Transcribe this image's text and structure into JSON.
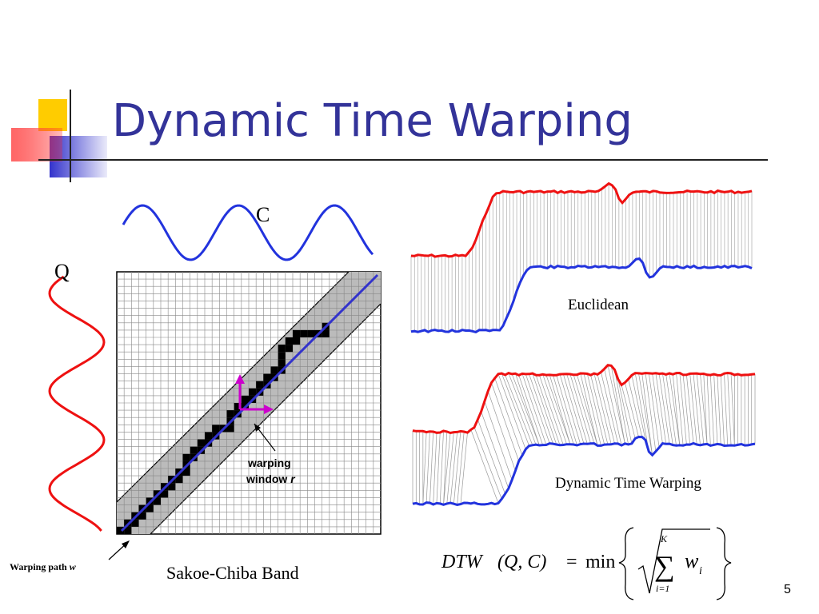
{
  "slide": {
    "title": "Dynamic Time Warping",
    "page_number": "5"
  },
  "left_figure": {
    "label_c": "C",
    "label_q": "Q",
    "grid_size": 36,
    "warping_window_line1": "warping",
    "warping_window_line2": "window",
    "warping_window_var": "r",
    "warping_path_label": "Warping path",
    "warping_path_var": "w",
    "caption": "Sakoe-Chiba Band"
  },
  "right_figure": {
    "euclidean_label": "Euclidean",
    "dtw_label": "Dynamic Time Warping"
  },
  "formula": {
    "lhs": "DTW",
    "args": "(Q, C)",
    "eq": "=",
    "op": "min",
    "sum_upper": "K",
    "sum_lower": "i=1",
    "term": "w",
    "term_sub": "i"
  },
  "colors": {
    "title": "#333399",
    "series_c": "#2233dd",
    "series_q": "#ee1111",
    "band": "#bbbbbb",
    "path": "#000000",
    "diagonal": "#3333cc",
    "arrow": "#cc00cc"
  }
}
